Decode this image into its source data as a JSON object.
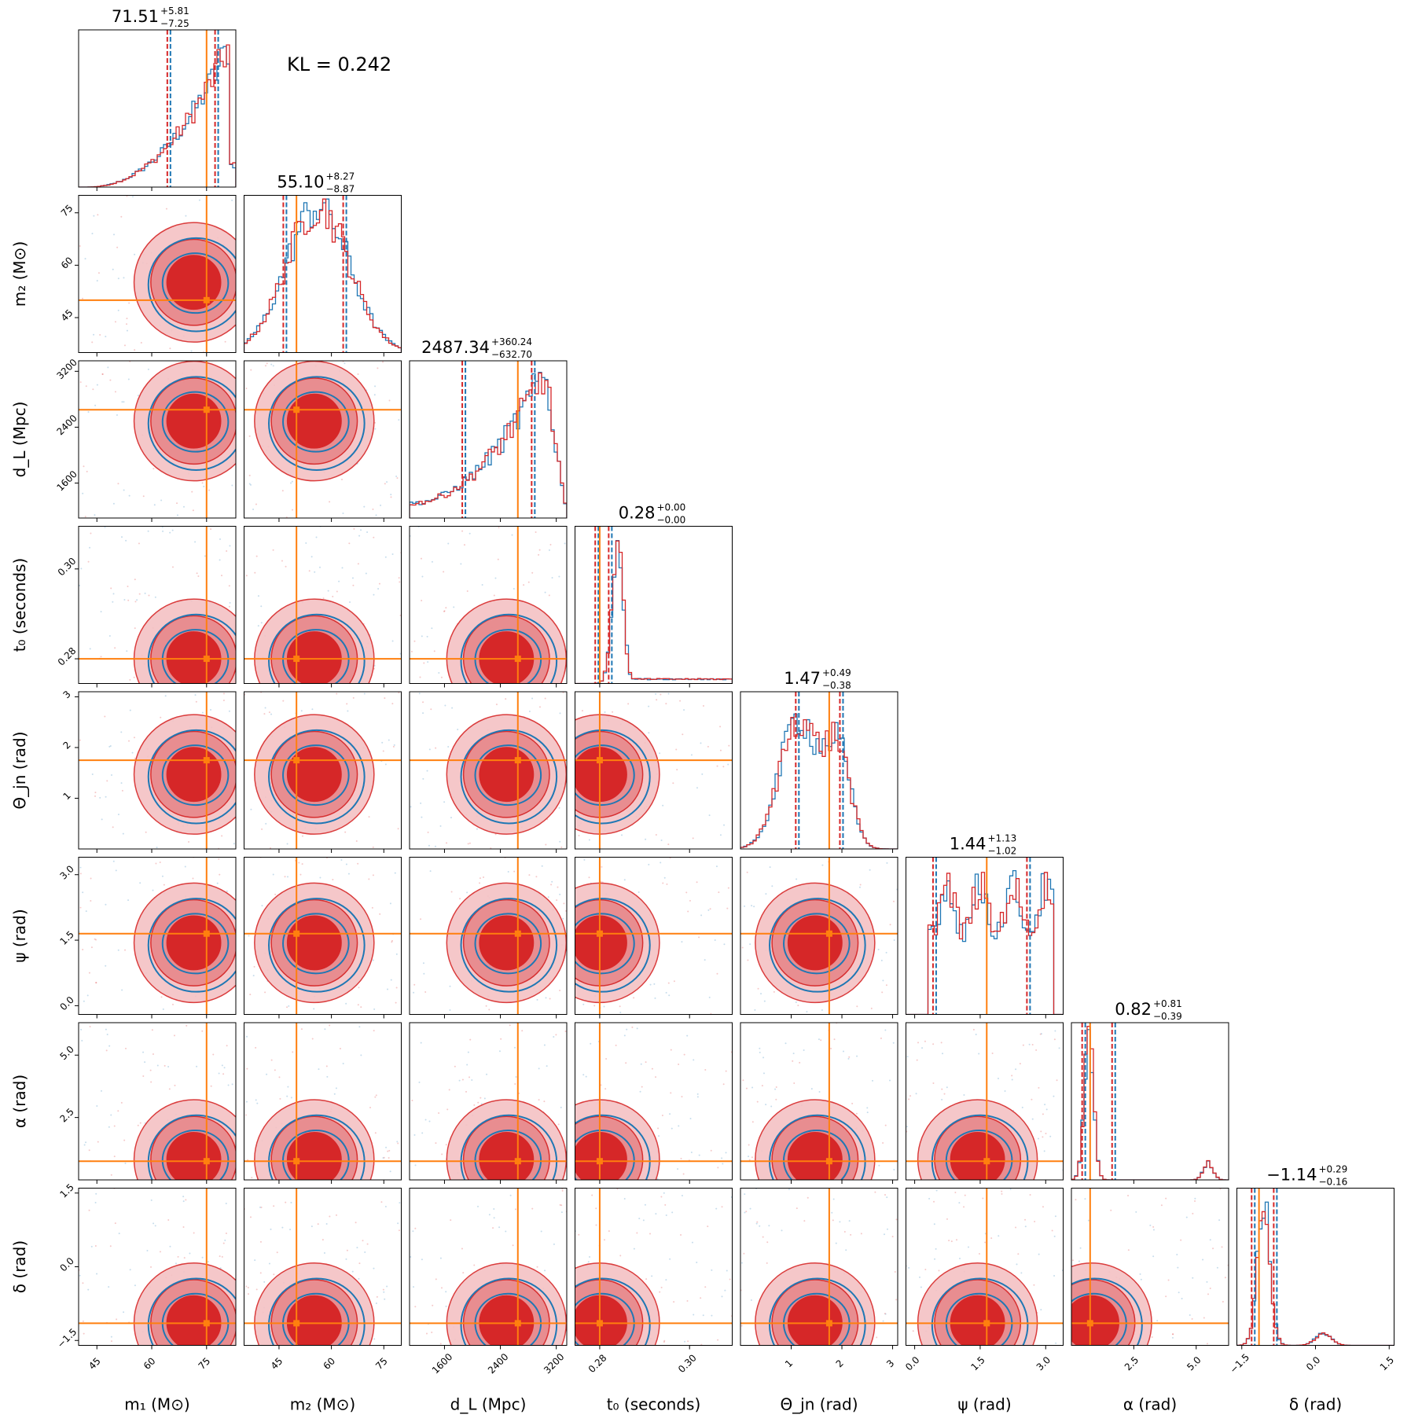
{
  "chart_data": {
    "type": "corner",
    "kl_text": "KL = 0.242",
    "colors": {
      "series_a": "#d62728",
      "series_b": "#1f77b4",
      "truth": "#ff7f0e"
    },
    "params": [
      {
        "label": "m1 (M⊙)",
        "axis_label": "m₁ (M⊙)",
        "range": [
          40,
          83
        ],
        "ticks": [
          "45",
          "60",
          "75"
        ],
        "tick_values": [
          45,
          60,
          75
        ],
        "title": "71.51 +5.81 −7.25",
        "title_main": "71.51",
        "title_up": "+5.81",
        "title_dn": "−7.25",
        "truth": 75,
        "median": 71.51,
        "q_lo": 64.26,
        "q_hi": 77.32
      },
      {
        "label": "m2 (M⊙)",
        "axis_label": "m₂ (M⊙)",
        "range": [
          35,
          80
        ],
        "ticks": [
          "45",
          "60",
          "75"
        ],
        "tick_values": [
          45,
          60,
          75
        ],
        "title": "55.10 +8.27 −8.87",
        "title_main": "55.10",
        "title_up": "+8.27",
        "title_dn": "−8.87",
        "truth": 50,
        "median": 55.1,
        "q_lo": 46.23,
        "q_hi": 63.37
      },
      {
        "label": "dL (Mpc)",
        "axis_label": "d_L (Mpc)",
        "range": [
          1100,
          3350
        ],
        "ticks": [
          "1600",
          "2400",
          "3200"
        ],
        "tick_values": [
          1600,
          2400,
          3200
        ],
        "title": "2487.34 +360.24 −632.70",
        "title_main": "2487.34",
        "title_up": "+360.24",
        "title_dn": "−632.70",
        "truth": 2650,
        "median": 2487.34,
        "q_lo": 1854.64,
        "q_hi": 2847.58
      },
      {
        "label": "t0 (seconds)",
        "axis_label": "t₀ (seconds)",
        "range": [
          0.2745,
          0.3095
        ],
        "ticks": [
          "0.28",
          "0.30"
        ],
        "tick_values": [
          0.28,
          0.3
        ],
        "title": "0.28 +0.00 −0.00",
        "title_main": "0.28",
        "title_up": "+0.00",
        "title_dn": "−0.00",
        "truth": 0.28,
        "median": 0.28,
        "q_lo": 0.279,
        "q_hi": 0.282
      },
      {
        "label": "Θjn (rad)",
        "axis_label": "Θ_jn (rad)",
        "range": [
          0,
          3.1
        ],
        "ticks": [
          "1",
          "2",
          "3"
        ],
        "tick_values": [
          1,
          2,
          3
        ],
        "title": "1.47 +0.49 −0.38",
        "title_main": "1.47",
        "title_up": "+0.49",
        "title_dn": "−0.38",
        "truth": 1.75,
        "median": 1.47,
        "q_lo": 1.09,
        "q_hi": 1.96
      },
      {
        "label": "ψ (rad)",
        "axis_label": "ψ (rad)",
        "range": [
          -0.2,
          3.4
        ],
        "ticks": [
          "0.0",
          "1.5",
          "3.0"
        ],
        "tick_values": [
          0,
          1.5,
          3.0
        ],
        "title": "1.44 +1.13 −1.02",
        "title_main": "1.44",
        "title_up": "+1.13",
        "title_dn": "−1.02",
        "truth": 1.65,
        "median": 1.44,
        "q_lo": 0.42,
        "q_hi": 2.57
      },
      {
        "label": "α (rad)",
        "axis_label": "α (rad)",
        "range": [
          0,
          6.3
        ],
        "ticks": [
          "2.5",
          "5.0"
        ],
        "tick_values": [
          2.5,
          5.0
        ],
        "title": "0.82 +0.81 −0.39",
        "title_main": "0.82",
        "title_up": "+0.81",
        "title_dn": "−0.39",
        "truth": 0.75,
        "median": 0.82,
        "q_lo": 0.43,
        "q_hi": 1.63
      },
      {
        "label": "δ (rad)",
        "axis_label": "δ (rad)",
        "range": [
          -1.6,
          1.6
        ],
        "ticks": [
          "−1.5",
          "0.0",
          "1.5"
        ],
        "tick_values": [
          -1.5,
          0,
          1.5
        ],
        "title": "−1.14 +0.29 −0.16",
        "title_main": "−1.14",
        "title_up": "+0.29",
        "title_dn": "−0.16",
        "truth": -1.15,
        "median": -1.14,
        "q_lo": -1.3,
        "q_hi": -0.85
      }
    ]
  }
}
